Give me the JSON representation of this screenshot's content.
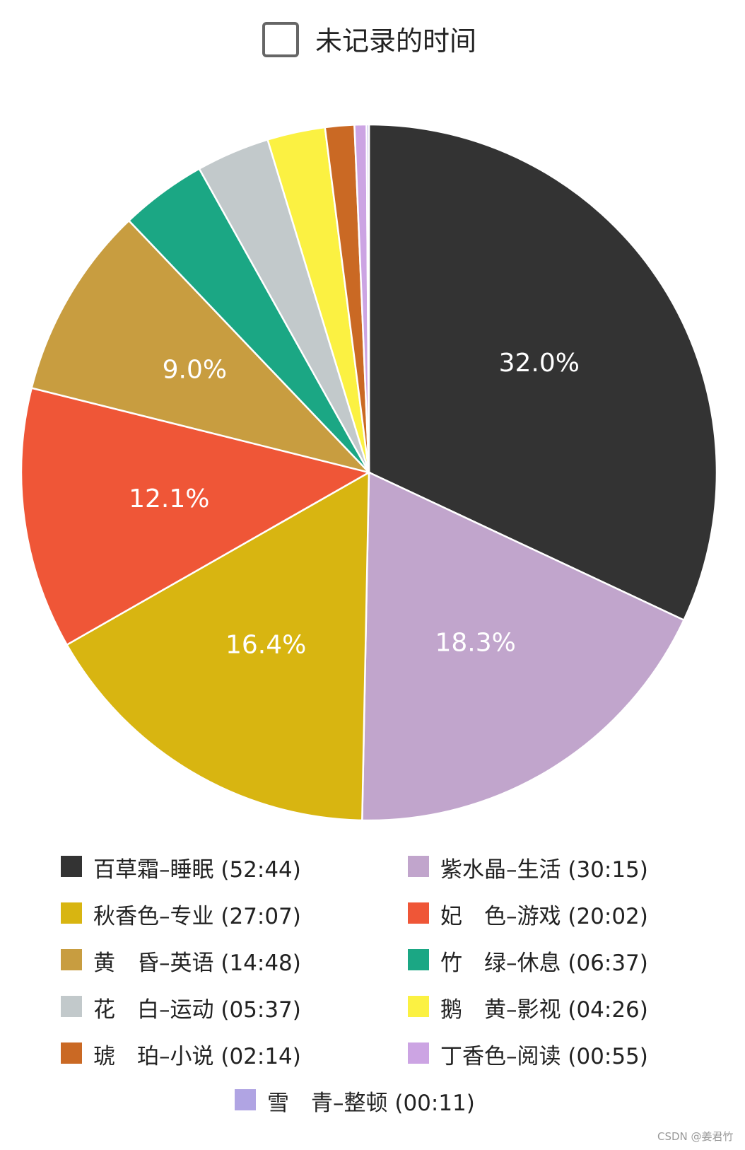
{
  "chart_data": {
    "type": "pie",
    "title": "未记录的时间",
    "legend_position": "bottom",
    "slices": [
      {
        "name": "百草霜–睡眠",
        "time": "(52:44)",
        "value": 52.733,
        "percent_label": "32.0%",
        "color": "#333333"
      },
      {
        "name": "紫水晶–生活",
        "time": "(30:15)",
        "value": 30.25,
        "percent_label": "18.3%",
        "color": "#c1a5cc"
      },
      {
        "name": "秋香色–专业",
        "time": "(27:07)",
        "value": 27.117,
        "percent_label": "16.4%",
        "color": "#d8b511"
      },
      {
        "name": "妃　色–游戏",
        "time": "(20:02)",
        "value": 20.033,
        "percent_label": "12.1%",
        "color": "#ef5637"
      },
      {
        "name": "黄　昏–英语",
        "time": "(14:48)",
        "value": 14.8,
        "percent_label": "9.0%",
        "color": "#c89d40"
      },
      {
        "name": "竹　绿–休息",
        "time": "(06:37)",
        "value": 6.617,
        "percent_label": "",
        "color": "#1ba784"
      },
      {
        "name": "花　白–运动",
        "time": "(05:37)",
        "value": 5.617,
        "percent_label": "",
        "color": "#c2c9cb"
      },
      {
        "name": "鹅　黄–影视",
        "time": "(04:26)",
        "value": 4.433,
        "percent_label": "",
        "color": "#fbf142"
      },
      {
        "name": "琥　珀–小说",
        "time": "(02:14)",
        "value": 2.233,
        "percent_label": "",
        "color": "#ca6924"
      },
      {
        "name": "丁香色–阅读",
        "time": "(00:55)",
        "value": 0.917,
        "percent_label": "",
        "color": "#cca4e3"
      },
      {
        "name": "雪　青–整顿",
        "time": "(00:11)",
        "value": 0.183,
        "percent_label": "",
        "color": "#b0a4e3"
      }
    ],
    "header_legend_color": "#ffffff"
  },
  "watermark": "CSDN @姜君竹"
}
